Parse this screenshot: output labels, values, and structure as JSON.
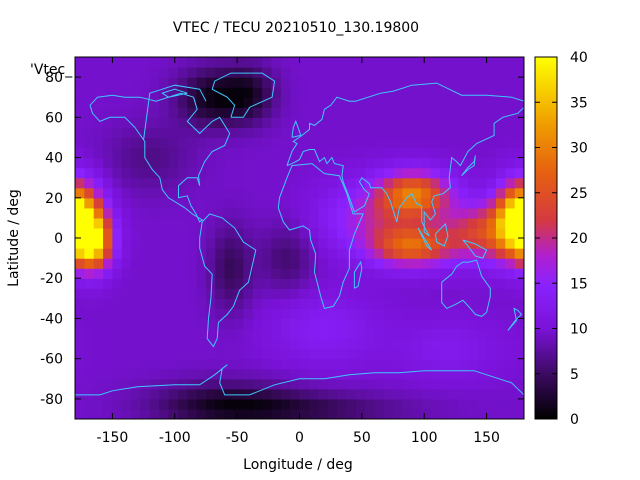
{
  "chart_data": {
    "type": "heatmap",
    "title": "VTEC / TECU 20210510_130.19800",
    "xlabel": "Longitude / deg",
    "ylabel": "Latitude / deg",
    "key_label": "'Vtec_",
    "xlim": [
      -180,
      180
    ],
    "ylim": [
      -90,
      90
    ],
    "x_ticks": [
      -150,
      -100,
      -50,
      0,
      50,
      100,
      150
    ],
    "y_ticks": [
      -80,
      -60,
      -40,
      -20,
      0,
      20,
      40,
      60,
      80
    ],
    "colorbar": {
      "range": [
        0,
        40
      ],
      "ticks": [
        0,
        5,
        10,
        15,
        20,
        25,
        30,
        35,
        40
      ],
      "palette": "black-purple-magenta-orange-yellow"
    },
    "grid": false,
    "features": [
      {
        "description": "equatorial maximum over Pacific",
        "lon": -175,
        "lat": 10,
        "vtec": 38
      },
      {
        "description": "enhancement over South/Southeast Asia",
        "lon": 90,
        "lat": 20,
        "vtec": 30
      },
      {
        "description": "enhancement over Indian Ocean / Indonesia",
        "lon": 90,
        "lat": -5,
        "vtec": 28
      },
      {
        "description": "equatorial crest east",
        "lon": 170,
        "lat": 10,
        "vtec": 36
      },
      {
        "description": "minimum over North America / Greenland",
        "lon": -60,
        "lat": 65,
        "vtec": 2
      },
      {
        "description": "minimum over South America",
        "lon": -55,
        "lat": -15,
        "vtec": 4
      },
      {
        "description": "low values near Antarctica",
        "lon": -60,
        "lat": -80,
        "vtec": 3
      }
    ]
  }
}
